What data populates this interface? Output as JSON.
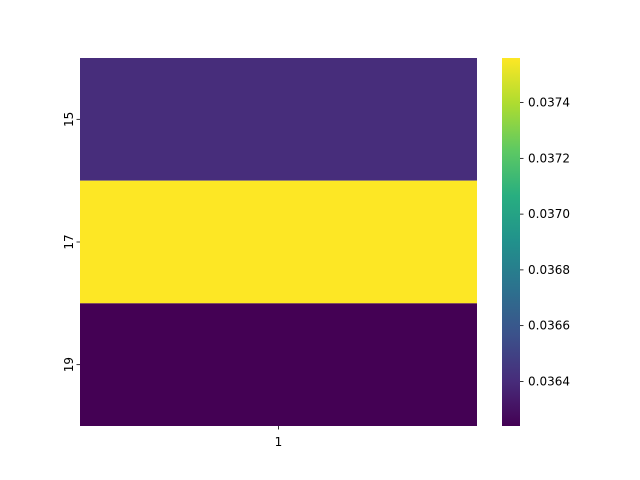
{
  "chart_data": {
    "type": "heatmap",
    "title": "",
    "xlabel": "",
    "ylabel": "",
    "x_categories": [
      "1"
    ],
    "y_categories": [
      "15",
      "17",
      "19"
    ],
    "values": [
      [
        0.03636
      ],
      [
        0.03756
      ],
      [
        0.03624
      ]
    ],
    "colormap": "viridis",
    "colorbar": {
      "vmin": 0.03624,
      "vmax": 0.03756,
      "ticks": [
        0.0364,
        0.0366,
        0.0368,
        0.037,
        0.0372,
        0.0374
      ],
      "tick_labels": [
        "0.0364",
        "0.0366",
        "0.0368",
        "0.0370",
        "0.0372",
        "0.0374"
      ]
    },
    "cell_colors": [
      "#472d7b",
      "#fde725",
      "#440154"
    ]
  }
}
